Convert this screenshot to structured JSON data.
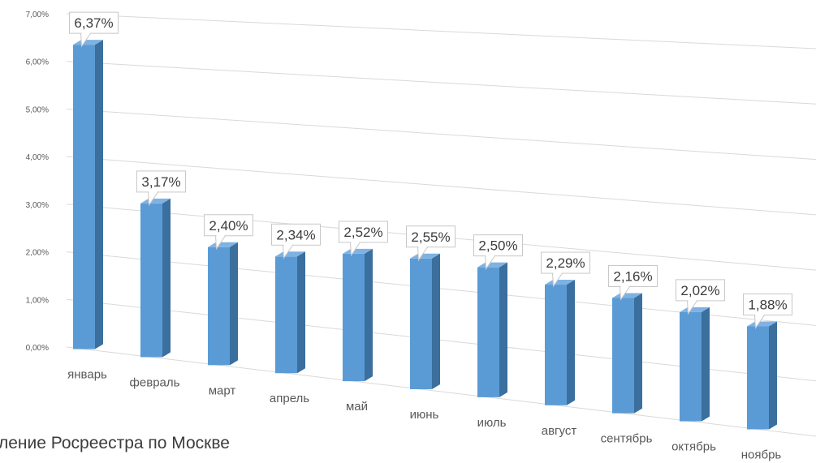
{
  "caption": "ление Росреестра по Москве",
  "chart_data": {
    "type": "bar",
    "categories": [
      "январь",
      "февраль",
      "март",
      "апрель",
      "май",
      "июнь",
      "июль",
      "август",
      "сентябрь",
      "октябрь",
      "ноябрь"
    ],
    "values": [
      6.37,
      3.17,
      2.4,
      2.34,
      2.52,
      2.55,
      2.5,
      2.29,
      2.16,
      2.02,
      1.88
    ],
    "data_labels": [
      "6,37%",
      "3,17%",
      "2,40%",
      "2,34%",
      "2,52%",
      "2,55%",
      "2,50%",
      "2,29%",
      "2,16%",
      "2,02%",
      "1,88%"
    ],
    "y_ticks": [
      "0,00%",
      "1,00%",
      "2,00%",
      "3,00%",
      "4,00%",
      "5,00%",
      "6,00%",
      "7,00%"
    ],
    "ylim": [
      0,
      7
    ],
    "grid": true,
    "colors": {
      "bar_front": "#5b9bd5",
      "bar_side": "#3a6f9e",
      "bar_top": "#7fb2e2",
      "grid": "#d9d9d9",
      "text": "#595959"
    }
  }
}
